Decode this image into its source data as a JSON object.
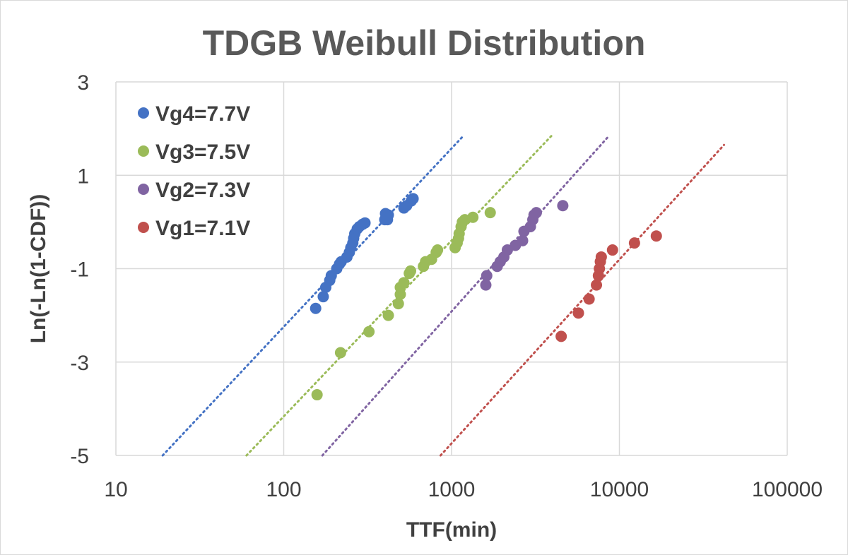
{
  "chart_data": {
    "type": "scatter",
    "title": "TDGB Weibull Distribution",
    "xlabel": "TTF(min)",
    "ylabel": "Ln(-Ln(1-CDF))",
    "x_scale": "log",
    "xlim": [
      10,
      100000
    ],
    "ylim": [
      -5,
      3
    ],
    "x_ticks": [
      10,
      100,
      1000,
      10000,
      100000
    ],
    "x_tick_labels": [
      "10",
      "100",
      "1000",
      "10000",
      "100000"
    ],
    "y_ticks": [
      -5,
      -3,
      -1,
      1,
      3
    ],
    "y_tick_labels": [
      "-5",
      "-3",
      "-1",
      "1",
      "3"
    ],
    "grid": true,
    "legend_position": "top-left",
    "series": [
      {
        "name": "Vg4=7.7V",
        "color": "#4472c4",
        "trendline": {
          "x": [
            19,
            1180
          ],
          "y": [
            -5,
            1.85
          ]
        },
        "points": [
          [
            155,
            -1.85
          ],
          [
            172,
            -1.6
          ],
          [
            178,
            -1.4
          ],
          [
            188,
            -1.25
          ],
          [
            192,
            -1.15
          ],
          [
            207,
            -1.0
          ],
          [
            215,
            -0.9
          ],
          [
            220,
            -0.85
          ],
          [
            238,
            -0.75
          ],
          [
            246,
            -0.65
          ],
          [
            251,
            -0.55
          ],
          [
            258,
            -0.45
          ],
          [
            261,
            -0.35
          ],
          [
            265,
            -0.25
          ],
          [
            274,
            -0.15
          ],
          [
            282,
            -0.1
          ],
          [
            295,
            -0.05
          ],
          [
            305,
            -0.02
          ],
          [
            400,
            0.05
          ],
          [
            404,
            0.18
          ],
          [
            415,
            0.05
          ],
          [
            420,
            0.15
          ],
          [
            520,
            0.3
          ],
          [
            540,
            0.35
          ],
          [
            575,
            0.45
          ],
          [
            590,
            0.5
          ]
        ]
      },
      {
        "name": "Vg3=7.5V",
        "color": "#9bbb59",
        "trendline": {
          "x": [
            60,
            3950
          ],
          "y": [
            -5,
            1.85
          ]
        },
        "points": [
          [
            158,
            -3.7
          ],
          [
            218,
            -2.8
          ],
          [
            322,
            -2.35
          ],
          [
            420,
            -2.0
          ],
          [
            482,
            -1.75
          ],
          [
            495,
            -1.55
          ],
          [
            495,
            -1.4
          ],
          [
            520,
            -1.3
          ],
          [
            560,
            -1.1
          ],
          [
            570,
            -1.05
          ],
          [
            680,
            -0.95
          ],
          [
            700,
            -0.85
          ],
          [
            760,
            -0.8
          ],
          [
            810,
            -0.65
          ],
          [
            825,
            -0.6
          ],
          [
            1050,
            -0.55
          ],
          [
            1080,
            -0.45
          ],
          [
            1100,
            -0.35
          ],
          [
            1110,
            -0.25
          ],
          [
            1140,
            -0.1
          ],
          [
            1160,
            0.0
          ],
          [
            1200,
            0.05
          ],
          [
            1340,
            0.1
          ],
          [
            1700,
            0.2
          ]
        ]
      },
      {
        "name": "Vg2=7.3V",
        "color": "#8064a2",
        "trendline": {
          "x": [
            170,
            8700
          ],
          "y": [
            -5,
            1.85
          ]
        },
        "points": [
          [
            1600,
            -1.35
          ],
          [
            1620,
            -1.15
          ],
          [
            1870,
            -0.95
          ],
          [
            1950,
            -0.85
          ],
          [
            2050,
            -0.75
          ],
          [
            2150,
            -0.6
          ],
          [
            2400,
            -0.5
          ],
          [
            2650,
            -0.4
          ],
          [
            2700,
            -0.2
          ],
          [
            2950,
            -0.1
          ],
          [
            3050,
            0.05
          ],
          [
            3100,
            0.15
          ],
          [
            3200,
            0.2
          ],
          [
            4600,
            0.35
          ]
        ]
      },
      {
        "name": "Vg1=7.1V",
        "color": "#c0504d",
        "trendline": {
          "x": [
            860,
            42000
          ],
          "y": [
            -5,
            1.65
          ]
        },
        "points": [
          [
            4500,
            -2.45
          ],
          [
            5700,
            -1.95
          ],
          [
            6600,
            -1.65
          ],
          [
            7300,
            -1.35
          ],
          [
            7500,
            -1.15
          ],
          [
            7600,
            -1.0
          ],
          [
            7700,
            -0.85
          ],
          [
            7800,
            -0.75
          ],
          [
            9100,
            -0.6
          ],
          [
            12300,
            -0.45
          ],
          [
            16600,
            -0.3
          ]
        ]
      }
    ]
  }
}
